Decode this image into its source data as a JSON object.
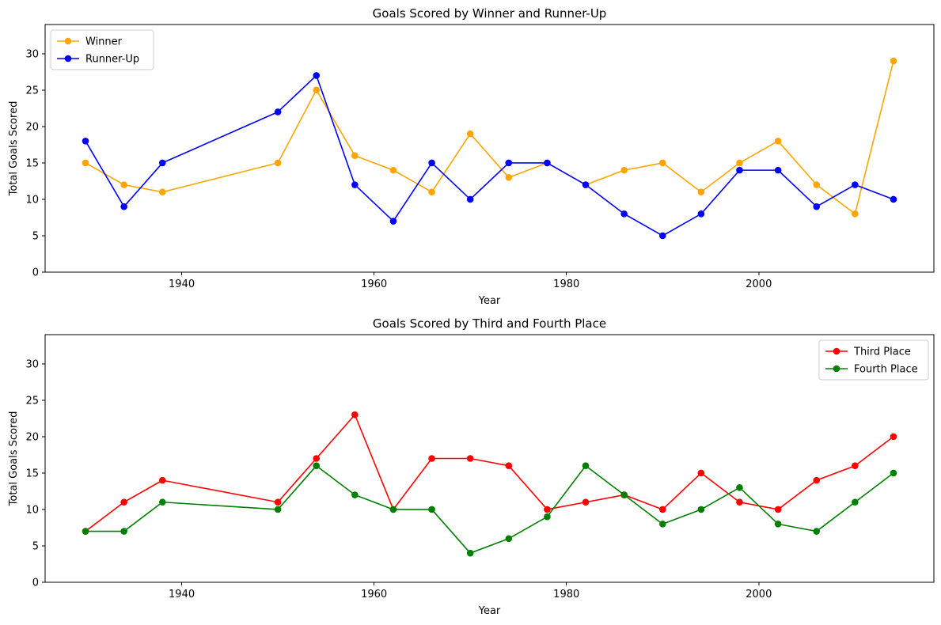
{
  "chart_data": [
    {
      "type": "line",
      "title": "Goals Scored by Winner and Runner-Up",
      "xlabel": "Year",
      "ylabel": "Total Goals Scored",
      "xlim": [
        1925.8,
        2018.2
      ],
      "ylim": [
        0,
        34
      ],
      "xticks": [
        1940,
        1960,
        1980,
        2000
      ],
      "yticks": [
        0,
        5,
        10,
        15,
        20,
        25,
        30
      ],
      "legend": "top-left",
      "grid": false,
      "x": [
        1930,
        1934,
        1938,
        1950,
        1954,
        1958,
        1962,
        1966,
        1970,
        1974,
        1978,
        1982,
        1986,
        1990,
        1994,
        1998,
        2002,
        2006,
        2010,
        2014
      ],
      "series": [
        {
          "name": "Winner",
          "color": "#ffa500",
          "values": [
            15,
            12,
            11,
            15,
            25,
            16,
            14,
            11,
            19,
            13,
            15,
            12,
            14,
            15,
            11,
            15,
            18,
            12,
            8,
            29
          ]
        },
        {
          "name": "Runner-Up",
          "color": "#0000ff",
          "values": [
            18,
            9,
            15,
            22,
            27,
            12,
            7,
            15,
            10,
            15,
            15,
            12,
            8,
            5,
            8,
            14,
            14,
            9,
            12,
            10
          ]
        }
      ]
    },
    {
      "type": "line",
      "title": "Goals Scored by Third and Fourth Place",
      "xlabel": "Year",
      "ylabel": "Total Goals Scored",
      "xlim": [
        1925.8,
        2018.2
      ],
      "ylim": [
        0,
        34
      ],
      "xticks": [
        1940,
        1960,
        1980,
        2000
      ],
      "yticks": [
        0,
        5,
        10,
        15,
        20,
        25,
        30
      ],
      "legend": "top-right",
      "grid": false,
      "x": [
        1930,
        1934,
        1938,
        1950,
        1954,
        1958,
        1962,
        1966,
        1970,
        1974,
        1978,
        1982,
        1986,
        1990,
        1994,
        1998,
        2002,
        2006,
        2010,
        2014
      ],
      "series": [
        {
          "name": "Third Place",
          "color": "#ff0000",
          "values": [
            7,
            11,
            14,
            11,
            17,
            23,
            10,
            17,
            17,
            16,
            10,
            11,
            12,
            10,
            15,
            11,
            10,
            14,
            16,
            20
          ]
        },
        {
          "name": "Fourth Place",
          "color": "#008000",
          "values": [
            7,
            7,
            11,
            10,
            16,
            12,
            10,
            10,
            4,
            6,
            9,
            16,
            12,
            8,
            10,
            13,
            8,
            7,
            11,
            15
          ]
        }
      ]
    }
  ]
}
